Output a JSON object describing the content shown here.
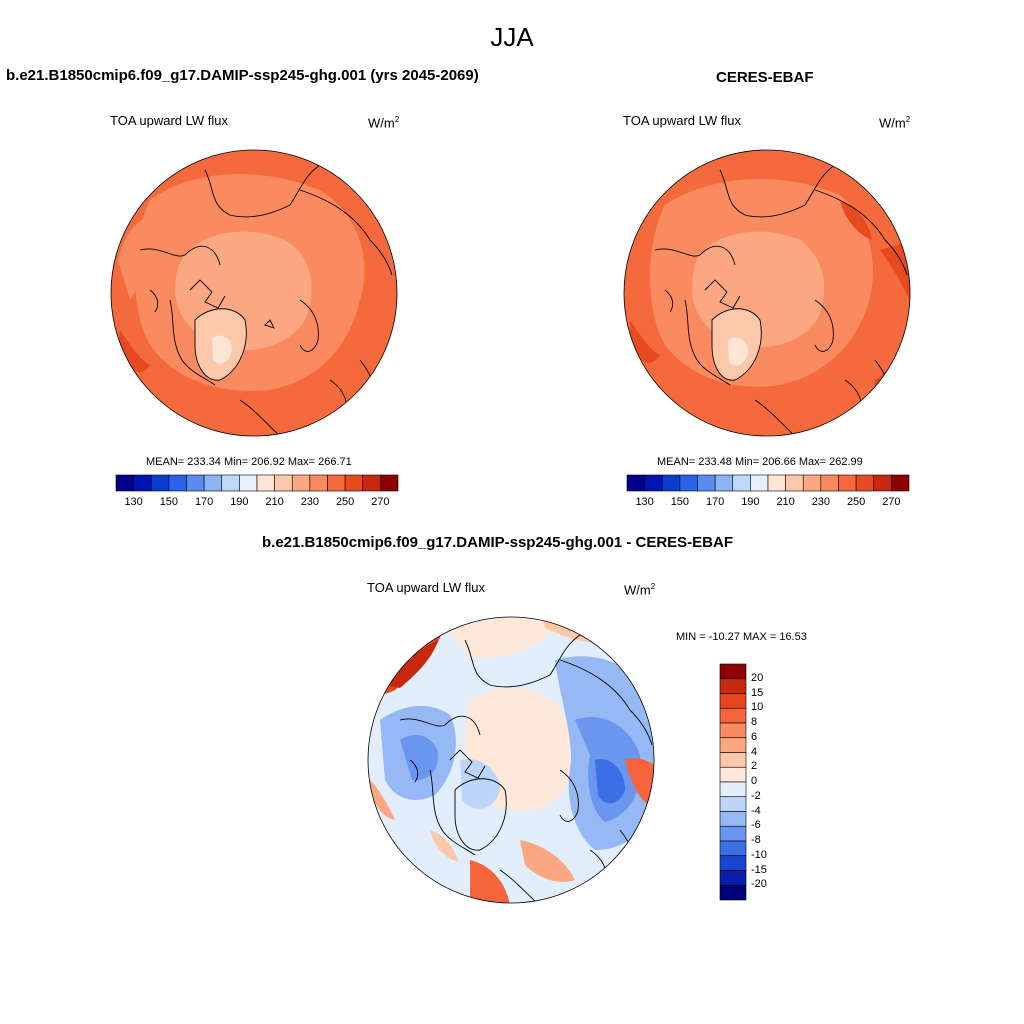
{
  "season": "JJA",
  "panels": [
    {
      "title": "b.e21.B1850cmip6.f09_g17.DAMIP-ssp245-ghg.001 (yrs 2045-2069)",
      "field": "TOA upward LW flux",
      "units_base": "W/m",
      "units_exp": "2",
      "stats": "MEAN= 233.34  Min= 206.92  Max= 266.71"
    },
    {
      "title": "CERES-EBAF",
      "field": "TOA upward LW flux",
      "units_base": "W/m",
      "units_exp": "2",
      "stats": "MEAN= 233.48  Min= 206.66  Max= 262.99"
    }
  ],
  "absolute_colorbar": {
    "tick_labels": [
      "130",
      "150",
      "170",
      "190",
      "210",
      "230",
      "250",
      "270"
    ],
    "colors": [
      "#00008c",
      "#0014b4",
      "#0a3cd2",
      "#2864e6",
      "#5a8cf0",
      "#8cb4f5",
      "#bed7fa",
      "#e6f0fc",
      "#fde6d6",
      "#fcc8aa",
      "#fba882",
      "#fa8a5f",
      "#f56a3c",
      "#e64a1e",
      "#c8280f",
      "#8c0000"
    ]
  },
  "difference": {
    "title": "b.e21.B1850cmip6.f09_g17.DAMIP-ssp245-ghg.001 - CERES-EBAF",
    "field": "TOA upward LW flux",
    "units_base": "W/m",
    "units_exp": "2",
    "minmax": "MIN = -10.27 MAX =  16.53",
    "tick_labels": [
      "20",
      "15",
      "10",
      "8",
      "6",
      "4",
      "2",
      "0",
      "-2",
      "-4",
      "-6",
      "-8",
      "-10",
      "-15",
      "-20"
    ],
    "colors": [
      "#8c0000",
      "#c8280f",
      "#e6461e",
      "#f5643c",
      "#fa8a5f",
      "#fba882",
      "#fcc8aa",
      "#fde8da",
      "#e3eefc",
      "#bed5fa",
      "#96b9f5",
      "#6a96f0",
      "#3c6ee6",
      "#1446d2",
      "#0a1eaa",
      "#000078"
    ]
  }
}
